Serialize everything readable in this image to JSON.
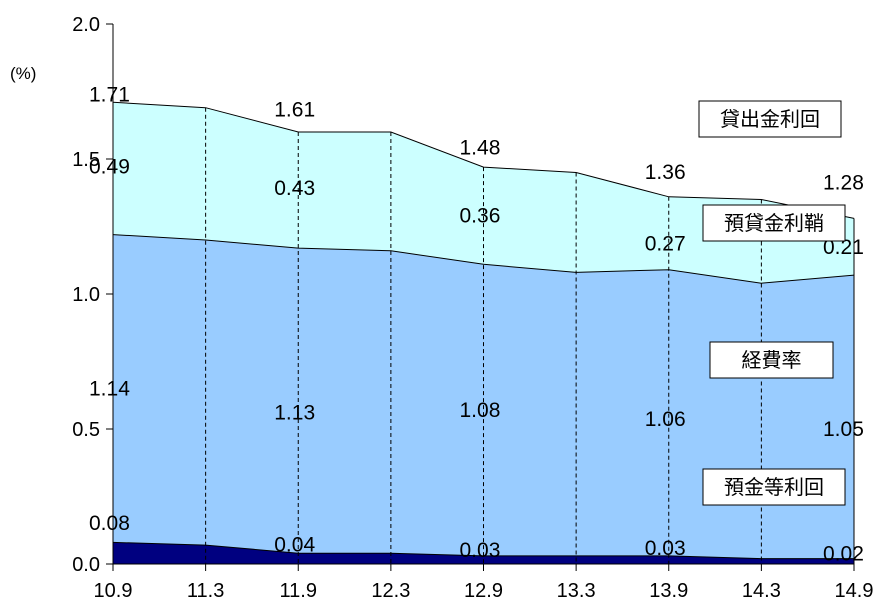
{
  "chart_data": {
    "type": "area",
    "stacked": true,
    "unit": "(%)",
    "ylim": [
      0,
      2.0
    ],
    "yticks": [
      "0.0",
      "0.5",
      "1.0",
      "1.5",
      "2.0"
    ],
    "grid": "vertical dashed lines at each x category",
    "categories": [
      "10.9",
      "11.3",
      "11.9",
      "12.3",
      "12.9",
      "13.3",
      "13.9",
      "14.3",
      "14.9"
    ],
    "series": [
      {
        "name": "預金等利回",
        "color": "#000080",
        "values": [
          0.08,
          0.07,
          0.04,
          0.04,
          0.03,
          0.03,
          0.03,
          0.02,
          0.02
        ]
      },
      {
        "name": "経費率",
        "color": "#99ccff",
        "values": [
          1.14,
          1.13,
          1.13,
          1.12,
          1.08,
          1.05,
          1.06,
          1.02,
          1.05
        ]
      },
      {
        "name": "預貸金利鞘",
        "color": "#ccffff",
        "values": [
          0.49,
          0.49,
          0.43,
          0.44,
          0.36,
          0.37,
          0.27,
          0.31,
          0.21
        ]
      }
    ],
    "total_series_name": "貸出金利回",
    "totals": [
      1.71,
      1.69,
      1.61,
      1.6,
      1.48,
      1.45,
      1.36,
      1.35,
      1.28
    ],
    "data_labels": [
      {
        "series": "預金等利回",
        "index": 0,
        "text": "0.08"
      },
      {
        "series": "預金等利回",
        "index": 2,
        "text": "0.04"
      },
      {
        "series": "預金等利回",
        "index": 4,
        "text": "0.03"
      },
      {
        "series": "預金等利回",
        "index": 6,
        "text": "0.03"
      },
      {
        "series": "預金等利回",
        "index": 8,
        "text": "0.02"
      },
      {
        "series": "経費率",
        "index": 0,
        "text": "1.14"
      },
      {
        "series": "経費率",
        "index": 2,
        "text": "1.13"
      },
      {
        "series": "経費率",
        "index": 4,
        "text": "1.08"
      },
      {
        "series": "経費率",
        "index": 6,
        "text": "1.06"
      },
      {
        "series": "経費率",
        "index": 8,
        "text": "1.05"
      },
      {
        "series": "預貸金利鞘",
        "index": 0,
        "text": "0.49"
      },
      {
        "series": "預貸金利鞘",
        "index": 2,
        "text": "0.43"
      },
      {
        "series": "預貸金利鞘",
        "index": 4,
        "text": "0.36"
      },
      {
        "series": "預貸金利鞘",
        "index": 6,
        "text": "0.27"
      },
      {
        "series": "預貸金利鞘",
        "index": 8,
        "text": "0.21"
      },
      {
        "series": "貸出金利回",
        "index": 0,
        "text": "1.71"
      },
      {
        "series": "貸出金利回",
        "index": 2,
        "text": "1.61"
      },
      {
        "series": "貸出金利回",
        "index": 4,
        "text": "1.48"
      },
      {
        "series": "貸出金利回",
        "index": 6,
        "text": "1.36"
      },
      {
        "series": "貸出金利回",
        "index": 8,
        "text": "1.28"
      }
    ],
    "legend": [
      "貸出金利回",
      "預貸金利鞘",
      "経費率",
      "預金等利回"
    ],
    "legend_placement": "right, labels boxed beside the areas"
  }
}
